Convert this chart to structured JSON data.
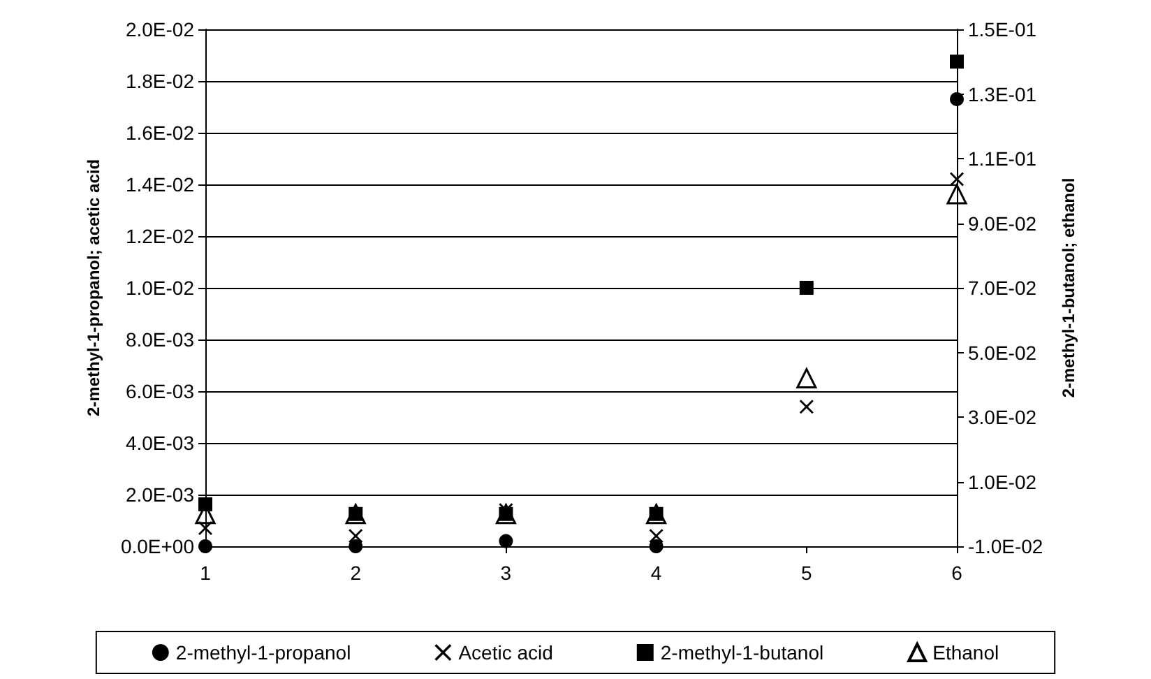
{
  "chart_data": {
    "type": "scatter",
    "x": [
      1,
      2,
      3,
      4,
      5,
      6
    ],
    "xlim": [
      1,
      6
    ],
    "xticks": [
      1,
      2,
      3,
      4,
      5,
      6
    ],
    "ylabel": "2-methyl-1-propanol; acetic acid",
    "y2label": "2-methyl-1-butanol; ethanol",
    "ylim": [
      0,
      0.02
    ],
    "yticks": [
      {
        "value": 0,
        "label": "0.0E+00"
      },
      {
        "value": 0.002,
        "label": "2.0E-03"
      },
      {
        "value": 0.004,
        "label": "4.0E-03"
      },
      {
        "value": 0.006,
        "label": "6.0E-03"
      },
      {
        "value": 0.008,
        "label": "8.0E-03"
      },
      {
        "value": 0.01,
        "label": "1.0E-02"
      },
      {
        "value": 0.012,
        "label": "1.2E-02"
      },
      {
        "value": 0.014,
        "label": "1.4E-02"
      },
      {
        "value": 0.016,
        "label": "1.6E-02"
      },
      {
        "value": 0.018,
        "label": "1.8E-02"
      },
      {
        "value": 0.02,
        "label": "2.0E-02"
      }
    ],
    "y2lim": [
      -0.01,
      0.15
    ],
    "y2ticks": [
      {
        "value": -0.01,
        "label": "-1.0E-02"
      },
      {
        "value": 0.01,
        "label": "1.0E-02"
      },
      {
        "value": 0.03,
        "label": "3.0E-02"
      },
      {
        "value": 0.05,
        "label": "5.0E-02"
      },
      {
        "value": 0.07,
        "label": "7.0E-02"
      },
      {
        "value": 0.09,
        "label": "9.0E-02"
      },
      {
        "value": 0.11,
        "label": "1.1E-01"
      },
      {
        "value": 0.13,
        "label": "1.3E-01"
      },
      {
        "value": 0.15,
        "label": "1.5E-01"
      }
    ],
    "grid": "y",
    "legend": "bottom",
    "series": [
      {
        "name": "2-methyl-1-propanol",
        "color": "#000000",
        "marker": "circle",
        "values": [
          0,
          0,
          0.0002,
          0,
          null,
          0.0173
        ]
      },
      {
        "name": "Acetic acid",
        "color": "#000000",
        "marker": "cross",
        "values": [
          0.0007,
          0.0004,
          0.0014,
          0.0004,
          0.0054,
          0.0142
        ]
      },
      {
        "name": "2-methyl-1-butanol",
        "color": "#000000",
        "marker": "square",
        "axis": "y2",
        "values": [
          0.003,
          0,
          0,
          0,
          0.07,
          0.14
        ]
      },
      {
        "name": "Ethanol",
        "color": "#000000",
        "marker": "triangle",
        "axis": "y2",
        "values": [
          0,
          0,
          0,
          0,
          0.042,
          0.099
        ]
      }
    ]
  }
}
